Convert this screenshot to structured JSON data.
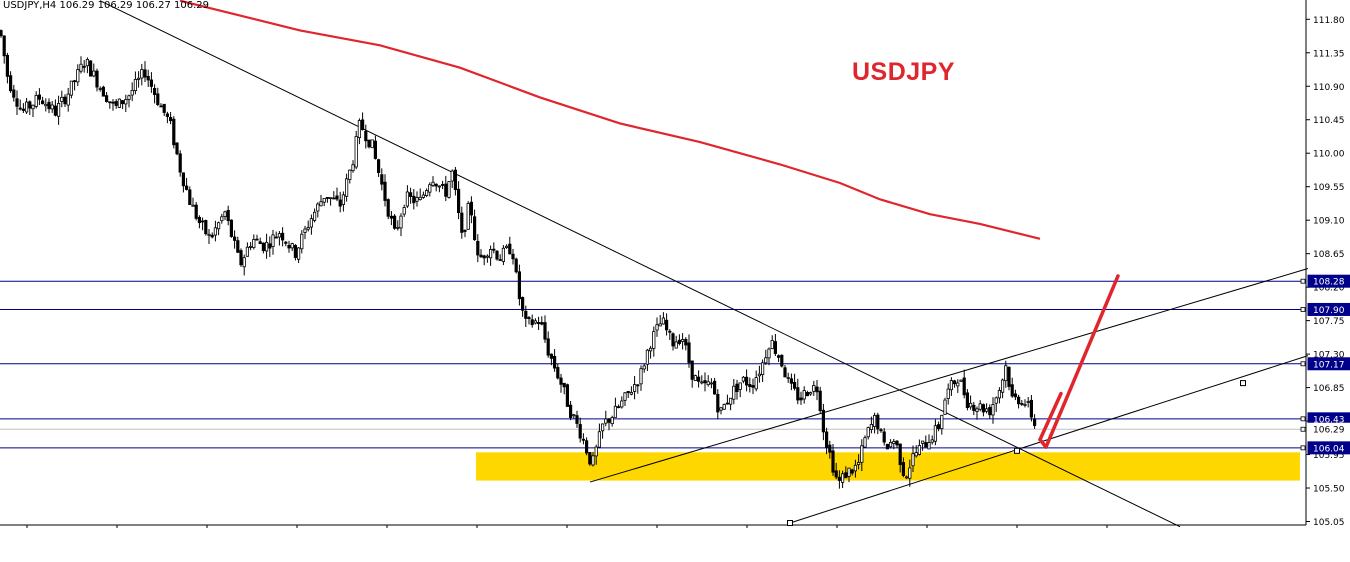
{
  "header": {
    "symbol_timeframe": "USDJPY,H4",
    "ohlc": "106.29 106.29 106.27 106.29"
  },
  "chart_title": "USDJPY",
  "chart_data": {
    "type": "candlestick",
    "symbol": "USDJPY",
    "timeframe": "H4",
    "ylim": [
      105.0,
      112.05
    ],
    "y_ticks": [
      105.05,
      105.5,
      105.95,
      106.4,
      106.85,
      107.3,
      107.75,
      108.2,
      108.65,
      109.1,
      109.55,
      110.0,
      110.45,
      110.9,
      111.35,
      111.8
    ],
    "current_price": 106.29,
    "price_labels": [
      108.28,
      107.9,
      107.17,
      106.43,
      106.29,
      106.04
    ],
    "horizontal_levels": [
      108.28,
      107.9,
      107.17,
      106.43,
      106.04
    ],
    "support_zone": [
      105.6,
      105.98
    ],
    "moving_average": {
      "color": "#e0262d",
      "points": [
        [
          180,
          112.05
        ],
        [
          300,
          111.65
        ],
        [
          380,
          111.45
        ],
        [
          460,
          111.15
        ],
        [
          540,
          110.75
        ],
        [
          620,
          110.4
        ],
        [
          700,
          110.15
        ],
        [
          780,
          109.85
        ],
        [
          840,
          109.6
        ],
        [
          880,
          109.38
        ],
        [
          930,
          109.18
        ],
        [
          980,
          109.05
        ],
        [
          1040,
          108.85
        ]
      ]
    },
    "trendlines": [
      {
        "from": [
          100,
          112.05
        ],
        "to": [
          1180,
          104.98
        ]
      },
      {
        "from": [
          590,
          105.58
        ],
        "to": [
          1308,
          108.45
        ]
      },
      {
        "from": [
          790,
          105.03
        ],
        "to": [
          1308,
          107.28
        ]
      }
    ],
    "forecast_arrow": {
      "color": "#e0262d",
      "points": [
        [
          1040,
          106.15
        ],
        [
          1046,
          106.05
        ],
        [
          1118,
          108.35
        ]
      ]
    },
    "colors": {
      "bull": "#ffffff",
      "bear": "#000000",
      "level": "#00008b",
      "zone": "#ffd700",
      "label_bg": "#00008b",
      "label_text": "#ffffff",
      "current_bg": "#ffffff"
    }
  }
}
